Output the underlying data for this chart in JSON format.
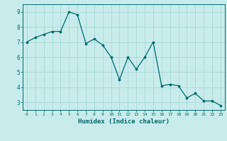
{
  "x": [
    0,
    1,
    2,
    3,
    4,
    5,
    6,
    7,
    8,
    9,
    10,
    11,
    12,
    13,
    14,
    15,
    16,
    17,
    18,
    19,
    20,
    21,
    22,
    23
  ],
  "y": [
    7.0,
    7.3,
    7.5,
    7.7,
    7.7,
    9.0,
    8.8,
    6.9,
    7.2,
    6.8,
    6.0,
    4.5,
    6.0,
    5.2,
    6.0,
    7.0,
    4.1,
    4.2,
    4.1,
    3.3,
    3.6,
    3.1,
    3.1,
    2.8
  ],
  "xlabel": "Humidex (Indice chaleur)",
  "xlim": [
    -0.5,
    23.5
  ],
  "ylim": [
    2.5,
    9.5
  ],
  "yticks": [
    3,
    4,
    5,
    6,
    7,
    8,
    9
  ],
  "xticks": [
    0,
    1,
    2,
    3,
    4,
    5,
    6,
    7,
    8,
    9,
    10,
    11,
    12,
    13,
    14,
    15,
    16,
    17,
    18,
    19,
    20,
    21,
    22,
    23
  ],
  "line_color": "#006868",
  "bg_color": "#c8ecec",
  "grid_color": "#aad8d8",
  "tick_color": "#006868",
  "label_color": "#006868"
}
